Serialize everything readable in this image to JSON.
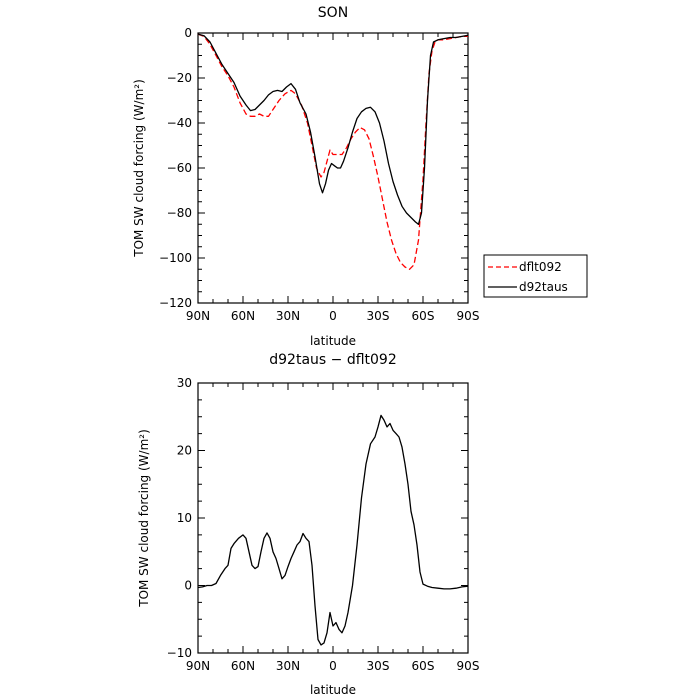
{
  "chart_data": [
    {
      "type": "line",
      "title": "SON",
      "xlabel": "latitude",
      "ylabel": "TOM SW cloud forcing (W/m²)",
      "xlim": [
        90,
        -90
      ],
      "ylim": [
        -120,
        0
      ],
      "x_ticks": [
        90,
        60,
        30,
        0,
        -30,
        -60,
        -90
      ],
      "x_tick_labels": [
        "90N",
        "60N",
        "30N",
        "0",
        "30S",
        "60S",
        "90S"
      ],
      "y_ticks": [
        0,
        -20,
        -40,
        -60,
        -80,
        -100,
        -120
      ],
      "y_tick_labels": [
        "0",
        "−20",
        "−40",
        "−60",
        "−80",
        "−100",
        "−120"
      ],
      "legend_position": "right",
      "series": [
        {
          "name": "dflt092",
          "color": "#ff0000",
          "dash": "dashed",
          "points": [
            [
              90,
              -0.5
            ],
            [
              86,
              -1.5
            ],
            [
              82,
              -5
            ],
            [
              78,
              -10
            ],
            [
              74,
              -15
            ],
            [
              70,
              -19
            ],
            [
              66,
              -24
            ],
            [
              62,
              -31
            ],
            [
              58,
              -36
            ],
            [
              55,
              -37
            ],
            [
              52,
              -37
            ],
            [
              49,
              -36
            ],
            [
              46,
              -37
            ],
            [
              43,
              -37
            ],
            [
              40,
              -34
            ],
            [
              36,
              -30
            ],
            [
              32,
              -27
            ],
            [
              28,
              -25.5
            ],
            [
              25,
              -27
            ],
            [
              21,
              -32
            ],
            [
              17,
              -40
            ],
            [
              14,
              -50
            ],
            [
              11,
              -60
            ],
            [
              8,
              -64
            ],
            [
              6,
              -62
            ],
            [
              4,
              -57
            ],
            [
              2,
              -52
            ],
            [
              0,
              -54
            ],
            [
              -3,
              -54
            ],
            [
              -6,
              -54
            ],
            [
              -9,
              -51
            ],
            [
              -12,
              -47
            ],
            [
              -15,
              -44
            ],
            [
              -18,
              -42
            ],
            [
              -21,
              -43
            ],
            [
              -24,
              -47
            ],
            [
              -27,
              -55
            ],
            [
              -30,
              -64
            ],
            [
              -33,
              -74
            ],
            [
              -36,
              -84
            ],
            [
              -39,
              -92
            ],
            [
              -42,
              -98
            ],
            [
              -45,
              -102
            ],
            [
              -48,
              -104
            ],
            [
              -51,
              -105
            ],
            [
              -54,
              -103
            ],
            [
              -57,
              -92
            ],
            [
              -60,
              -65
            ],
            [
              -62,
              -40
            ],
            [
              -64,
              -18
            ],
            [
              -66,
              -8
            ],
            [
              -68,
              -4
            ],
            [
              -70,
              -3
            ],
            [
              -74,
              -3
            ],
            [
              -78,
              -2.5
            ],
            [
              -82,
              -2
            ],
            [
              -86,
              -1.5
            ],
            [
              -90,
              -1.5
            ]
          ]
        },
        {
          "name": "d92taus",
          "color": "#000000",
          "dash": "solid",
          "points": [
            [
              90,
              -0.5
            ],
            [
              86,
              -1.2
            ],
            [
              82,
              -4
            ],
            [
              78,
              -9
            ],
            [
              74,
              -14
            ],
            [
              70,
              -18
            ],
            [
              66,
              -22
            ],
            [
              62,
              -28
            ],
            [
              58,
              -32
            ],
            [
              55,
              -34.5
            ],
            [
              52,
              -34
            ],
            [
              49,
              -32
            ],
            [
              46,
              -30
            ],
            [
              43,
              -27.5
            ],
            [
              40,
              -26
            ],
            [
              37,
              -25.5
            ],
            [
              34,
              -26
            ],
            [
              31,
              -24
            ],
            [
              28,
              -22.5
            ],
            [
              25,
              -25
            ],
            [
              22,
              -31
            ],
            [
              18,
              -36
            ],
            [
              15,
              -44
            ],
            [
              12,
              -55
            ],
            [
              9,
              -67
            ],
            [
              7,
              -71
            ],
            [
              5,
              -67
            ],
            [
              3,
              -61
            ],
            [
              1,
              -58
            ],
            [
              -1,
              -59
            ],
            [
              -3,
              -60
            ],
            [
              -5,
              -60
            ],
            [
              -7,
              -57
            ],
            [
              -10,
              -51
            ],
            [
              -13,
              -44
            ],
            [
              -16,
              -38
            ],
            [
              -19,
              -35
            ],
            [
              -22,
              -33.5
            ],
            [
              -25,
              -33
            ],
            [
              -28,
              -35
            ],
            [
              -31,
              -40
            ],
            [
              -34,
              -48
            ],
            [
              -37,
              -58
            ],
            [
              -40,
              -66
            ],
            [
              -43,
              -72
            ],
            [
              -46,
              -77
            ],
            [
              -49,
              -80
            ],
            [
              -52,
              -82
            ],
            [
              -55,
              -84
            ],
            [
              -57,
              -85
            ],
            [
              -59,
              -80
            ],
            [
              -61,
              -60
            ],
            [
              -63,
              -30
            ],
            [
              -65,
              -10
            ],
            [
              -67,
              -4
            ],
            [
              -70,
              -3
            ],
            [
              -74,
              -2.5
            ],
            [
              -78,
              -2
            ],
            [
              -82,
              -2
            ],
            [
              -86,
              -1.5
            ],
            [
              -90,
              -1
            ]
          ]
        }
      ]
    },
    {
      "type": "line",
      "title": "d92taus − dflt092",
      "xlabel": "latitude",
      "ylabel": "TOM SW cloud forcing (W/m²)",
      "xlim": [
        90,
        -90
      ],
      "ylim": [
        -10,
        30
      ],
      "x_ticks": [
        90,
        60,
        30,
        0,
        -30,
        -60,
        -90
      ],
      "x_tick_labels": [
        "90N",
        "60N",
        "30N",
        "0",
        "30S",
        "60S",
        "90S"
      ],
      "y_ticks": [
        30,
        20,
        10,
        0,
        -10
      ],
      "y_tick_labels": [
        "30",
        "20",
        "10",
        "0",
        "−10"
      ],
      "series": [
        {
          "color": "#000000",
          "dash": "solid",
          "points": [
            [
              90,
              -0.3
            ],
            [
              87,
              -0.2
            ],
            [
              84,
              0
            ],
            [
              81,
              0
            ],
            [
              78,
              0.3
            ],
            [
              75,
              1.5
            ],
            [
              72,
              2.5
            ],
            [
              70,
              3
            ],
            [
              68,
              5.5
            ],
            [
              66,
              6.2
            ],
            [
              63,
              7
            ],
            [
              60,
              7.5
            ],
            [
              58,
              7
            ],
            [
              56,
              5
            ],
            [
              54,
              3
            ],
            [
              52,
              2.5
            ],
            [
              50,
              2.8
            ],
            [
              48,
              5
            ],
            [
              46,
              7
            ],
            [
              44,
              7.8
            ],
            [
              42,
              7
            ],
            [
              40,
              5
            ],
            [
              38,
              4
            ],
            [
              36,
              2.5
            ],
            [
              34,
              1
            ],
            [
              32,
              1.5
            ],
            [
              30,
              2.8
            ],
            [
              28,
              4
            ],
            [
              26,
              5
            ],
            [
              24,
              6
            ],
            [
              22,
              6.5
            ],
            [
              20,
              7.7
            ],
            [
              18,
              7
            ],
            [
              16,
              6.5
            ],
            [
              14,
              3
            ],
            [
              12,
              -3
            ],
            [
              10,
              -8
            ],
            [
              8,
              -8.8
            ],
            [
              6,
              -8.5
            ],
            [
              4,
              -7
            ],
            [
              2,
              -4
            ],
            [
              0,
              -6
            ],
            [
              -2,
              -5.5
            ],
            [
              -4,
              -6.5
            ],
            [
              -6,
              -7
            ],
            [
              -8,
              -6
            ],
            [
              -10,
              -4
            ],
            [
              -13,
              0
            ],
            [
              -16,
              6
            ],
            [
              -19,
              13
            ],
            [
              -22,
              18
            ],
            [
              -25,
              21
            ],
            [
              -28,
              22
            ],
            [
              -30,
              23.5
            ],
            [
              -32,
              25.2
            ],
            [
              -34,
              24.5
            ],
            [
              -36,
              23.5
            ],
            [
              -38,
              24
            ],
            [
              -40,
              23
            ],
            [
              -42,
              22.5
            ],
            [
              -44,
              22
            ],
            [
              -46,
              20.5
            ],
            [
              -48,
              18
            ],
            [
              -50,
              15
            ],
            [
              -52,
              11
            ],
            [
              -54,
              9
            ],
            [
              -56,
              6
            ],
            [
              -58,
              2
            ],
            [
              -60,
              0.2
            ],
            [
              -63,
              -0.1
            ],
            [
              -66,
              -0.3
            ],
            [
              -70,
              -0.4
            ],
            [
              -74,
              -0.5
            ],
            [
              -78,
              -0.5
            ],
            [
              -82,
              -0.4
            ],
            [
              -86,
              -0.2
            ],
            [
              -90,
              -0.1
            ]
          ]
        }
      ]
    }
  ]
}
